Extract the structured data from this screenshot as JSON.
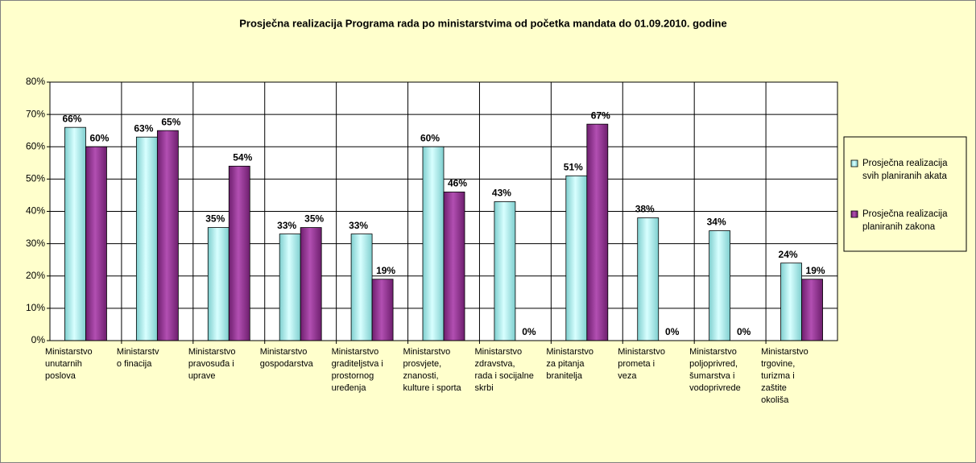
{
  "chart_data": {
    "type": "bar",
    "title": "Prosječna realizacija Programa rada po ministarstvima od početka mandata do 01.09.2010. godine",
    "categories": [
      [
        "Ministarstvo",
        "unutarnih",
        "poslova"
      ],
      [
        "Ministarstv",
        "o finacija"
      ],
      [
        "Ministarstvo",
        "pravosuđa i",
        "uprave"
      ],
      [
        "Ministarstvo",
        "gospodarstva"
      ],
      [
        "Ministarstvo",
        "graditeljstva i",
        "prostornog",
        "uređenja"
      ],
      [
        "Ministarstvo",
        "prosvjete,",
        "znanosti,",
        "kulture i sporta"
      ],
      [
        "Ministarstvo",
        "zdravstva,",
        "rada i socijalne",
        "skrbi"
      ],
      [
        "Ministarstvo",
        "za pitanja",
        "branitelja"
      ],
      [
        "Ministarstvo",
        "prometa i",
        "veza"
      ],
      [
        "Ministarstvo",
        "poljoprivred,",
        "šumarstva i",
        "vodoprivrede"
      ],
      [
        "Ministarstvo",
        "trgovine,",
        "turizma i",
        "zaštite",
        "okoliša"
      ]
    ],
    "series": [
      {
        "name": "Prosječna realizacija svih planiranih akata",
        "color": "#99e6e6",
        "values": [
          66,
          63,
          35,
          33,
          33,
          60,
          43,
          51,
          38,
          34,
          24
        ],
        "value_labels": [
          "66%",
          "63%",
          "35%",
          "33%",
          "33%",
          "60%",
          "43%",
          "51%",
          "38%",
          "34%",
          "24%"
        ]
      },
      {
        "name": "Prosječna realizacija planiranih zakona",
        "color": "#993399",
        "values": [
          60,
          65,
          54,
          35,
          19,
          46,
          0,
          67,
          0,
          0,
          19
        ],
        "value_labels": [
          "60%",
          "65%",
          "54%",
          "35%",
          "19%",
          "46%",
          "0%",
          "67%",
          "0%",
          "0%",
          "19%"
        ]
      }
    ],
    "ylim": [
      0,
      80
    ],
    "yticks": [
      {
        "value": 0,
        "label": "0%"
      },
      {
        "value": 10,
        "label": "10%"
      },
      {
        "value": 20,
        "label": "20%"
      },
      {
        "value": 30,
        "label": "30%"
      },
      {
        "value": 40,
        "label": "40%"
      },
      {
        "value": 50,
        "label": "50%"
      },
      {
        "value": 60,
        "label": "60%"
      },
      {
        "value": 70,
        "label": "70%"
      },
      {
        "value": 80,
        "label": "80%"
      }
    ],
    "grid": true,
    "legend": "right"
  }
}
